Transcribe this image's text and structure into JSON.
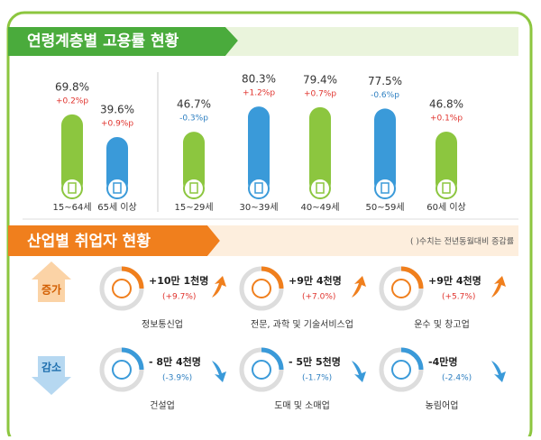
{
  "chart_data": {
    "type": "bar",
    "title": "연령계층별 고용률 현황",
    "categories": [
      "15~64세",
      "65세 이상",
      "15~29세",
      "30~39세",
      "40~49세",
      "50~59세",
      "60세 이상"
    ],
    "values": [
      69.8,
      39.6,
      46.7,
      80.3,
      79.4,
      77.5,
      46.8
    ],
    "value_labels": [
      "69.8%",
      "39.6%",
      "46.7%",
      "80.3%",
      "79.4%",
      "77.5%",
      "46.8%"
    ],
    "change_labels": [
      "+0.2%p",
      "+0.9%p",
      "-0.3%p",
      "+1.2%p",
      "+0.7%p",
      "-0.6%p",
      "+0.1%p"
    ],
    "colors": [
      "#8cc63f",
      "#3a9ad9",
      "#8cc63f",
      "#3a9ad9",
      "#8cc63f",
      "#3a9ad9",
      "#8cc63f"
    ],
    "change_colors": [
      "#e0322c",
      "#e0322c",
      "#2d7fc1",
      "#e0322c",
      "#e0322c",
      "#2d7fc1",
      "#e0322c"
    ],
    "ylim": [
      -36,
      84
    ]
  },
  "industry": {
    "title": "산업별 취업자 현황",
    "note": "( )수치는 전년동월대비 증감률",
    "groups": [
      {
        "label": "증가",
        "color": "#f07f1d",
        "items": [
          {
            "amount": "+10만 1천명",
            "rate": "(+9.7%)",
            "name": "정보통신업"
          },
          {
            "amount": "+9만 4천명",
            "rate": "(+7.0%)",
            "name": "전문, 과학 및 기술서비스업"
          },
          {
            "amount": "+9만 4천명",
            "rate": "(+5.7%)",
            "name": "운수 및 창고업"
          }
        ]
      },
      {
        "label": "감소",
        "color": "#3a9ad9",
        "items": [
          {
            "amount": "- 8만 4천명",
            "rate": "(-3.9%)",
            "name": "건설업"
          },
          {
            "amount": "- 5만 5천명",
            "rate": "(-1.7%)",
            "name": "도매 및 소매업"
          },
          {
            "amount": "-4만명",
            "rate": "(-2.4%)",
            "name": "농림어업"
          }
        ]
      }
    ]
  }
}
